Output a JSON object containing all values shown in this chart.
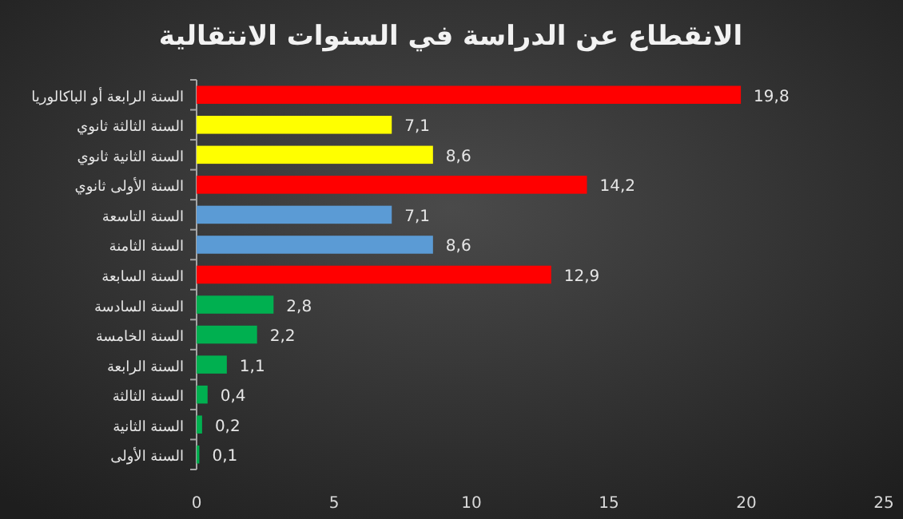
{
  "chart_data": {
    "type": "bar",
    "orientation": "horizontal",
    "title": "الانقطاع عن الدراسة في السنوات الانتقالية",
    "categories": [
      "السنة الرابعة أو الباكالوريا",
      "السنة الثالثة ثانوي",
      "السنة الثانية ثانوي",
      "السنة الأولى ثانوي",
      "السنة التاسعة",
      "السنة الثامنة",
      "السنة السابعة",
      "السنة السادسة",
      "السنة الخامسة",
      "السنة الرابعة",
      "السنة الثالثة",
      "السنة الثانية",
      "السنة الأولى"
    ],
    "values": [
      19.8,
      7.1,
      8.6,
      14.2,
      7.1,
      8.6,
      12.9,
      2.8,
      2.2,
      1.1,
      0.4,
      0.2,
      0.1
    ],
    "value_labels": [
      "19,8",
      "7,1",
      "8,6",
      "14,2",
      "7,1",
      "8,6",
      "12,9",
      "2,8",
      "2,2",
      "1,1",
      "0,4",
      "0,2",
      "0,1"
    ],
    "colors": [
      "#ff0000",
      "#ffff00",
      "#ffff00",
      "#ff0000",
      "#5b9bd5",
      "#5b9bd5",
      "#ff0000",
      "#00b050",
      "#00b050",
      "#00b050",
      "#00b050",
      "#00b050",
      "#00b050"
    ],
    "xlim": [
      0,
      25
    ],
    "xticks": [
      0,
      5,
      10,
      15,
      20,
      25
    ],
    "grid": false
  }
}
